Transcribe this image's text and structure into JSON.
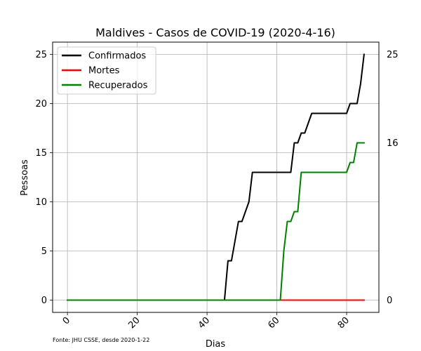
{
  "chart_data": {
    "type": "line",
    "title": "Maldives - Casos de COVID-19 (2020-4-16)",
    "xlabel": "Dias",
    "ylabel": "Pessoas",
    "xlim": [
      -4.25,
      89.25
    ],
    "ylim": [
      -1.25,
      26.25
    ],
    "xticks": [
      0,
      20,
      40,
      60,
      80
    ],
    "yticks": [
      0,
      5,
      10,
      15,
      20,
      25
    ],
    "grid": true,
    "legend_position": "top-left",
    "source_note": "Fonte: JHU CSSE, desde 2020-1-22",
    "right_labels": [
      {
        "text": "25",
        "value": 25
      },
      {
        "text": "16",
        "value": 16
      },
      {
        "text": "0",
        "value": 0
      }
    ],
    "series": [
      {
        "name": "Confirmados",
        "color": "#000000",
        "points": [
          [
            0,
            0
          ],
          [
            45,
            0
          ],
          [
            46,
            4
          ],
          [
            47,
            4
          ],
          [
            48,
            6
          ],
          [
            49,
            8
          ],
          [
            50,
            8
          ],
          [
            51,
            9
          ],
          [
            52,
            10
          ],
          [
            53,
            13
          ],
          [
            63,
            13
          ],
          [
            64,
            13
          ],
          [
            65,
            16
          ],
          [
            66,
            16
          ],
          [
            67,
            17
          ],
          [
            68,
            17
          ],
          [
            69,
            18
          ],
          [
            70,
            19
          ],
          [
            80,
            19
          ],
          [
            81,
            20
          ],
          [
            83,
            20
          ],
          [
            84,
            22
          ],
          [
            85,
            25
          ]
        ]
      },
      {
        "name": "Mortes",
        "color": "#ff0000",
        "points": [
          [
            0,
            0
          ],
          [
            85,
            0
          ]
        ]
      },
      {
        "name": "Recuperados",
        "color": "#008000",
        "points": [
          [
            0,
            0
          ],
          [
            61,
            0
          ],
          [
            62,
            5
          ],
          [
            63,
            8
          ],
          [
            64,
            8
          ],
          [
            65,
            9
          ],
          [
            66,
            9
          ],
          [
            67,
            13
          ],
          [
            80,
            13
          ],
          [
            81,
            14
          ],
          [
            82,
            14
          ],
          [
            83,
            16
          ],
          [
            85,
            16
          ]
        ]
      }
    ]
  }
}
